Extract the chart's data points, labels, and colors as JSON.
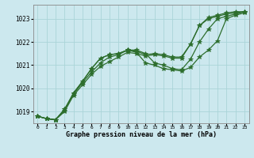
{
  "xlabel": "Graphe pression niveau de la mer (hPa)",
  "hours": [
    0,
    1,
    2,
    3,
    4,
    5,
    6,
    7,
    8,
    9,
    10,
    11,
    12,
    13,
    14,
    15,
    16,
    17,
    18,
    19,
    20,
    21,
    22,
    23
  ],
  "line1": [
    1018.8,
    1018.7,
    1018.65,
    1019.1,
    1019.75,
    1020.25,
    1020.7,
    1021.1,
    1021.35,
    1021.45,
    1021.65,
    1021.6,
    1021.45,
    1021.5,
    1021.45,
    1021.35,
    1021.35,
    1021.9,
    1022.7,
    1023.0,
    1023.1,
    1023.2,
    1023.25,
    1023.3
  ],
  "line2": [
    1018.8,
    1018.7,
    1018.65,
    1019.05,
    1019.8,
    1020.3,
    1020.85,
    1021.3,
    1021.45,
    1021.5,
    1021.65,
    1021.65,
    1021.5,
    1021.1,
    1021.0,
    1020.85,
    1020.8,
    1021.25,
    1022.0,
    1022.55,
    1023.0,
    1023.1,
    1023.2,
    1023.3
  ],
  "line3": [
    1018.8,
    1018.7,
    1018.65,
    1019.1,
    1019.8,
    1020.3,
    1020.85,
    1021.3,
    1021.45,
    1021.5,
    1021.65,
    1021.55,
    1021.1,
    1021.0,
    1020.85,
    1020.8,
    1020.75,
    1020.9,
    1021.35,
    1021.65,
    1022.05,
    1023.0,
    1023.15,
    1023.25
  ],
  "line4": [
    1018.8,
    1018.7,
    1018.65,
    1019.0,
    1019.7,
    1020.15,
    1020.6,
    1020.95,
    1021.15,
    1021.35,
    1021.55,
    1021.5,
    1021.4,
    1021.45,
    1021.4,
    1021.3,
    1021.3,
    1021.9,
    1022.7,
    1023.05,
    1023.15,
    1023.25,
    1023.3,
    1023.3
  ],
  "line_color": "#2d6e2d",
  "bg_color": "#cce8ee",
  "grid_color": "#aad4d8",
  "ylim": [
    1018.5,
    1023.6
  ],
  "yticks": [
    1019,
    1020,
    1021,
    1022,
    1023
  ],
  "marker": "*",
  "marker_size": 4,
  "linewidth": 0.9
}
